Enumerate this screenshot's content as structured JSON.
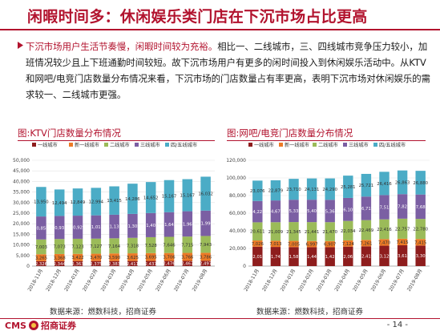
{
  "header": {
    "title": "闲暇时间多：休闲娱乐类门店在下沉市场占比更高"
  },
  "body": {
    "lead": "下沉市场用户生活节奏慢，闲暇时间较为充裕。",
    "rest": "相比一、二线城市，三、四线城市竞争压力较小，加班情况较少且上下班通勤时间较短。故下沉市场用户有更多的闲时间投入到休闲娱乐活动中。从KTV和网吧/电竞门店数量分布情况来看，下沉市场的门店数量占有率更高，表明下沉市场对休闲娱乐的需求较一、二线城市更强。"
  },
  "colors": {
    "accent": "#b2132e",
    "tier1": "#8e1d1d",
    "new_tier1": "#ec7a26",
    "tier2": "#9bbb59",
    "tier3": "#7b5fa3",
    "tier45": "#4bacc6"
  },
  "chart_data": [
    {
      "type": "bar",
      "stacked": true,
      "title": "图:KTV门店数量分布情况",
      "legend_position": "top",
      "categories": [
        "2018-11月",
        "2018-12月",
        "2019-01月",
        "2019-02月",
        "2019-03月",
        "2019-04月",
        "2019-05月",
        "2019-06月",
        "2019-07月",
        "2019-08月"
      ],
      "ylim": [
        0,
        50000
      ],
      "yticks": [
        0,
        5000,
        10000,
        15000,
        20000,
        25000,
        30000,
        35000,
        40000,
        45000,
        50000
      ],
      "series": [
        {
          "name": "一线城市",
          "color_key": "tier1",
          "values": [
            2326,
            2344,
            2363,
            2375,
            2383,
            2411,
            2437,
            2476,
            2467,
            2497
          ]
        },
        {
          "name": "新一线城市",
          "color_key": "new_tier1",
          "values": [
            3265,
            3368,
            3422,
            3470,
            3590,
            3625,
            3695,
            3706,
            3766,
            3786
          ]
        },
        {
          "name": "二线城市",
          "color_key": "tier2",
          "values": [
            7003,
            7073,
            7123,
            7127,
            7164,
            7318,
            7528,
            7646,
            7715,
            7943
          ]
        },
        {
          "name": "三线城市",
          "color_key": "tier3",
          "values": [
            10858,
            10931,
            10929,
            11013,
            11135,
            11305,
            11408,
            11645,
            11966,
            11990
          ]
        },
        {
          "name": "四/五线城市",
          "color_key": "tier45",
          "values": [
            13950,
            12494,
            12849,
            12994,
            13415,
            14286,
            14652,
            15167,
            15167,
            16032
          ]
        }
      ]
    },
    {
      "type": "bar",
      "stacked": true,
      "title": "图:网吧/电竞门店数量分布情况",
      "legend_position": "top",
      "categories": [
        "2018-11月",
        "2018-12月",
        "2019-01月",
        "2019-02月",
        "2019-03月",
        "2019-04月",
        "2019-05月",
        "2019-06月",
        "2019-07月",
        "2019-08月"
      ],
      "ylim": [
        0,
        120000
      ],
      "yticks": [
        0,
        20000,
        40000,
        60000,
        80000,
        100000,
        120000
      ],
      "series": [
        {
          "name": "一线城市",
          "color_key": "tier1",
          "values": [
            22010,
            21741,
            21581,
            21441,
            21424,
            22062,
            22419,
            23129,
            23615,
            23301
          ]
        },
        {
          "name": "新一线城市",
          "color_key": "new_tier1",
          "values": [
            7026,
            7013,
            7005,
            6997,
            6907,
            7124,
            7261,
            7470,
            7415,
            7415
          ]
        },
        {
          "name": "二线城市",
          "color_key": "tier2",
          "values": [
            20611,
            21009,
            21345,
            21441,
            21470,
            22034,
            22469,
            22416,
            22757,
            22780
          ]
        },
        {
          "name": "三线城市",
          "color_key": "tier3",
          "values": [
            24225,
            24677,
            25335,
            25409,
            25360,
            26109,
            26715,
            27512,
            27827,
            27680
          ]
        },
        {
          "name": "四/五线城市",
          "color_key": "tier45",
          "values": [
            23076,
            22879,
            23710,
            24131,
            24290,
            25281,
            25721,
            26416,
            26863,
            26880
          ]
        }
      ]
    }
  ],
  "charts": [
    {
      "title": "图:KTV门店数量分布情况",
      "source": "数据来源：燃数科技，招商证券"
    },
    {
      "title": "图:网吧/电竞门店数量分布情况",
      "source": "数据来源：燃数科技，招商证券"
    }
  ],
  "footer": {
    "logo_text": "CMS",
    "logo_cn": "招商证券",
    "page_number": "- 14 -"
  }
}
